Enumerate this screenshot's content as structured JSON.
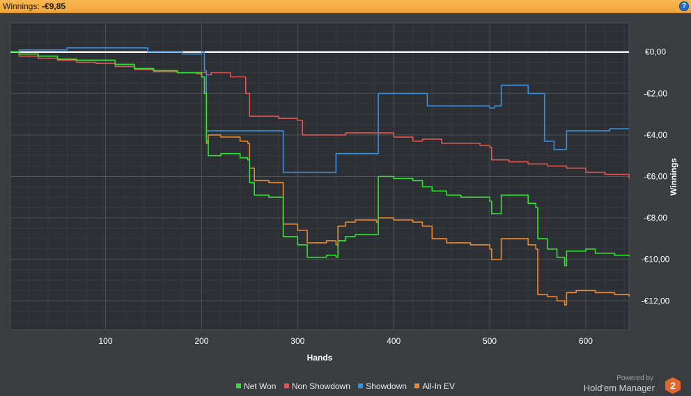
{
  "header": {
    "label": "Winnings:",
    "value": "-€9,85"
  },
  "help": {
    "label": "?"
  },
  "chart_data": {
    "type": "line",
    "xlabel": "Hands",
    "ylabel": "Winnings",
    "xlim": [
      1,
      645
    ],
    "ylim": [
      -13.4,
      1.4
    ],
    "x_ticks": [
      100,
      200,
      300,
      400,
      500,
      600
    ],
    "y_ticks": [
      0,
      -2,
      -4,
      -6,
      -8,
      -10,
      -12
    ],
    "y_tick_labels": [
      "€0,00",
      "-€2,00",
      "-€4,00",
      "-€6,00",
      "-€8,00",
      "-€10,00",
      "-€12,00"
    ],
    "zero_line": 0,
    "grid": true,
    "legend_position": "bottom",
    "series": [
      {
        "name": "Net Won",
        "color": "#33e333",
        "points": [
          [
            1,
            0
          ],
          [
            10,
            -0.1
          ],
          [
            30,
            -0.2
          ],
          [
            50,
            -0.35
          ],
          [
            70,
            -0.4
          ],
          [
            90,
            -0.4
          ],
          [
            110,
            -0.6
          ],
          [
            130,
            -0.8
          ],
          [
            150,
            -0.9
          ],
          [
            175,
            -1.0
          ],
          [
            195,
            -1.0
          ],
          [
            200,
            -1.2
          ],
          [
            203,
            -2.0
          ],
          [
            205,
            -4.3
          ],
          [
            207,
            -5.0
          ],
          [
            220,
            -4.9
          ],
          [
            240,
            -5.1
          ],
          [
            248,
            -5.2
          ],
          [
            250,
            -6.3
          ],
          [
            255,
            -6.9
          ],
          [
            270,
            -7.0
          ],
          [
            282,
            -7.0
          ],
          [
            285,
            -8.9
          ],
          [
            300,
            -9.3
          ],
          [
            310,
            -9.9
          ],
          [
            330,
            -9.8
          ],
          [
            340,
            -9.9
          ],
          [
            342,
            -9.1
          ],
          [
            350,
            -8.9
          ],
          [
            360,
            -8.8
          ],
          [
            382,
            -8.8
          ],
          [
            384,
            -6.0
          ],
          [
            400,
            -6.1
          ],
          [
            420,
            -6.2
          ],
          [
            430,
            -6.5
          ],
          [
            440,
            -6.7
          ],
          [
            450,
            -6.7
          ],
          [
            455,
            -6.9
          ],
          [
            470,
            -7.0
          ],
          [
            480,
            -7.0
          ],
          [
            500,
            -7.2
          ],
          [
            502,
            -7.8
          ],
          [
            510,
            -7.8
          ],
          [
            512,
            -6.9
          ],
          [
            530,
            -6.9
          ],
          [
            540,
            -7.3
          ],
          [
            548,
            -7.5
          ],
          [
            550,
            -9.0
          ],
          [
            560,
            -9.5
          ],
          [
            570,
            -9.9
          ],
          [
            578,
            -10.3
          ],
          [
            580,
            -9.6
          ],
          [
            590,
            -9.6
          ],
          [
            600,
            -9.5
          ],
          [
            610,
            -9.7
          ],
          [
            620,
            -9.7
          ],
          [
            630,
            -9.8
          ],
          [
            645,
            -9.85
          ]
        ]
      },
      {
        "name": "Non Showdown",
        "color": "#e05555",
        "points": [
          [
            1,
            0
          ],
          [
            10,
            -0.2
          ],
          [
            30,
            -0.3
          ],
          [
            50,
            -0.4
          ],
          [
            70,
            -0.5
          ],
          [
            90,
            -0.55
          ],
          [
            110,
            -0.7
          ],
          [
            130,
            -0.85
          ],
          [
            150,
            -0.95
          ],
          [
            175,
            -1.0
          ],
          [
            195,
            -1.05
          ],
          [
            200,
            -1.0
          ],
          [
            205,
            -1.1
          ],
          [
            210,
            -1.0
          ],
          [
            230,
            -1.2
          ],
          [
            243,
            -1.2
          ],
          [
            246,
            -2.0
          ],
          [
            250,
            -3.1
          ],
          [
            280,
            -3.2
          ],
          [
            300,
            -3.3
          ],
          [
            305,
            -4.0
          ],
          [
            330,
            -4.0
          ],
          [
            350,
            -3.9
          ],
          [
            380,
            -3.9
          ],
          [
            400,
            -4.1
          ],
          [
            420,
            -4.3
          ],
          [
            430,
            -4.2
          ],
          [
            450,
            -4.4
          ],
          [
            470,
            -4.4
          ],
          [
            490,
            -4.5
          ],
          [
            500,
            -4.6
          ],
          [
            502,
            -5.2
          ],
          [
            520,
            -5.3
          ],
          [
            540,
            -5.4
          ],
          [
            560,
            -5.5
          ],
          [
            580,
            -5.6
          ],
          [
            600,
            -5.8
          ],
          [
            620,
            -5.9
          ],
          [
            645,
            -6.1
          ]
        ]
      },
      {
        "name": "Showdown",
        "color": "#3d8fd9",
        "points": [
          [
            1,
            0
          ],
          [
            10,
            0.1
          ],
          [
            40,
            0.1
          ],
          [
            60,
            0.2
          ],
          [
            80,
            0.2
          ],
          [
            100,
            0.2
          ],
          [
            142,
            0.2
          ],
          [
            144,
            0
          ],
          [
            170,
            0
          ],
          [
            180,
            -0.1
          ],
          [
            200,
            0
          ],
          [
            203,
            -0.9
          ],
          [
            205,
            -3.8
          ],
          [
            220,
            -3.8
          ],
          [
            240,
            -3.8
          ],
          [
            270,
            -3.8
          ],
          [
            282,
            -3.8
          ],
          [
            285,
            -5.8
          ],
          [
            300,
            -5.8
          ],
          [
            320,
            -5.8
          ],
          [
            338,
            -5.8
          ],
          [
            340,
            -4.9
          ],
          [
            360,
            -4.9
          ],
          [
            382,
            -4.9
          ],
          [
            384,
            -2.0
          ],
          [
            400,
            -2.0
          ],
          [
            410,
            -2.0
          ],
          [
            433,
            -2.0
          ],
          [
            435,
            -2.6
          ],
          [
            460,
            -2.6
          ],
          [
            480,
            -2.6
          ],
          [
            500,
            -2.7
          ],
          [
            505,
            -2.6
          ],
          [
            510,
            -2.6
          ],
          [
            512,
            -1.6
          ],
          [
            530,
            -1.6
          ],
          [
            538,
            -1.6
          ],
          [
            540,
            -2.0
          ],
          [
            555,
            -2.0
          ],
          [
            557,
            -4.3
          ],
          [
            565,
            -4.3
          ],
          [
            567,
            -4.7
          ],
          [
            578,
            -4.7
          ],
          [
            580,
            -3.8
          ],
          [
            600,
            -3.8
          ],
          [
            615,
            -3.8
          ],
          [
            625,
            -3.7
          ],
          [
            645,
            -3.7
          ]
        ]
      },
      {
        "name": "All-In EV",
        "color": "#e88a30",
        "points": [
          [
            1,
            0
          ],
          [
            10,
            -0.1
          ],
          [
            30,
            -0.2
          ],
          [
            50,
            -0.35
          ],
          [
            70,
            -0.4
          ],
          [
            90,
            -0.4
          ],
          [
            110,
            -0.6
          ],
          [
            130,
            -0.8
          ],
          [
            150,
            -0.9
          ],
          [
            175,
            -1.0
          ],
          [
            195,
            -1.0
          ],
          [
            200,
            -1.2
          ],
          [
            203,
            -2.0
          ],
          [
            205,
            -4.4
          ],
          [
            207,
            -4.0
          ],
          [
            220,
            -4.1
          ],
          [
            240,
            -4.3
          ],
          [
            248,
            -4.4
          ],
          [
            250,
            -5.6
          ],
          [
            255,
            -6.2
          ],
          [
            270,
            -6.3
          ],
          [
            282,
            -6.3
          ],
          [
            285,
            -8.3
          ],
          [
            300,
            -8.6
          ],
          [
            310,
            -9.2
          ],
          [
            330,
            -9.1
          ],
          [
            340,
            -9.3
          ],
          [
            342,
            -8.4
          ],
          [
            350,
            -8.2
          ],
          [
            360,
            -8.1
          ],
          [
            382,
            -8.2
          ],
          [
            384,
            -8.0
          ],
          [
            400,
            -8.1
          ],
          [
            420,
            -8.2
          ],
          [
            430,
            -8.4
          ],
          [
            440,
            -9.0
          ],
          [
            450,
            -9.0
          ],
          [
            455,
            -9.2
          ],
          [
            470,
            -9.2
          ],
          [
            480,
            -9.3
          ],
          [
            500,
            -9.5
          ],
          [
            502,
            -10.0
          ],
          [
            510,
            -10.0
          ],
          [
            512,
            -9.0
          ],
          [
            530,
            -9.0
          ],
          [
            540,
            -9.3
          ],
          [
            548,
            -9.5
          ],
          [
            550,
            -11.7
          ],
          [
            560,
            -11.8
          ],
          [
            570,
            -12.0
          ],
          [
            578,
            -12.2
          ],
          [
            580,
            -11.6
          ],
          [
            590,
            -11.5
          ],
          [
            600,
            -11.5
          ],
          [
            610,
            -11.6
          ],
          [
            620,
            -11.6
          ],
          [
            630,
            -11.7
          ],
          [
            645,
            -11.8
          ]
        ]
      }
    ]
  },
  "brand": {
    "powered_by": "Powered by",
    "name": "Hold'em Manager",
    "logo_text": "2"
  }
}
